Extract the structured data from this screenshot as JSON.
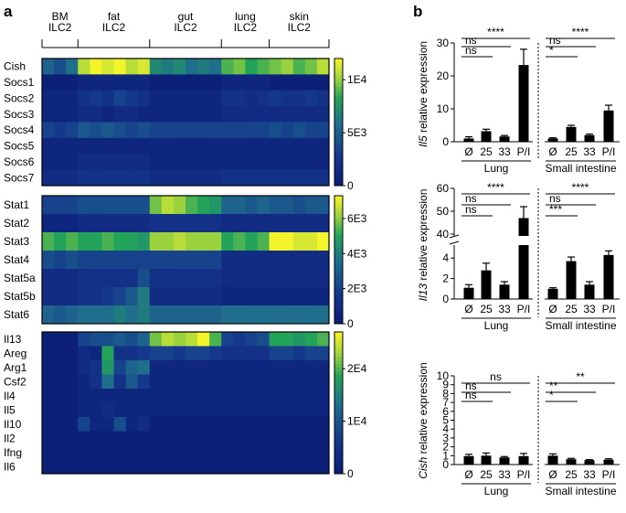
{
  "panel_labels": {
    "a": "a",
    "b": "b"
  },
  "colors": {
    "low": "#0a1a73",
    "mid_low": "#15388c",
    "mid": "#1f6e8c",
    "mid_high": "#23a35a",
    "high_mid": "#9ad13f",
    "high": "#f4f42a",
    "bar": "#000000"
  },
  "chart_data": [
    {
      "type": "heatmap",
      "group_labels": [
        [
          "BM",
          "ILC2"
        ],
        [
          "fat",
          "ILC2"
        ],
        [
          "gut",
          "ILC2"
        ],
        [
          "lung",
          "ILC2"
        ],
        [
          "skin",
          "ILC2"
        ]
      ],
      "group_sizes": [
        3,
        6,
        6,
        4,
        5
      ],
      "heatmaps": [
        {
          "rows": [
            "Cish",
            "Socs1",
            "Socs2",
            "Socs3",
            "Socs4",
            "Socs5",
            "Socs6",
            "Socs7"
          ],
          "colorbar_ticks": [
            "1E4",
            "5E3",
            "0"
          ],
          "colorbar_max": 1.2,
          "colorbar_tick_values": [
            1.0,
            0.5,
            0.0
          ],
          "values": [
            [
              0.45,
              0.35,
              0.5,
              0.9,
              1.0,
              0.95,
              1.0,
              0.9,
              0.95,
              0.6,
              0.55,
              0.6,
              0.5,
              0.55,
              0.5,
              0.75,
              0.8,
              0.7,
              0.75,
              0.8,
              0.85,
              0.75,
              0.8,
              0.9
            ],
            [
              0.05,
              0.05,
              0.05,
              0.1,
              0.1,
              0.1,
              0.1,
              0.1,
              0.1,
              0.05,
              0.05,
              0.05,
              0.05,
              0.05,
              0.05,
              0.1,
              0.1,
              0.1,
              0.1,
              0.05,
              0.05,
              0.05,
              0.05,
              0.05
            ],
            [
              0.1,
              0.1,
              0.1,
              0.2,
              0.25,
              0.2,
              0.3,
              0.25,
              0.2,
              0.1,
              0.1,
              0.1,
              0.1,
              0.1,
              0.1,
              0.2,
              0.2,
              0.15,
              0.2,
              0.25,
              0.2,
              0.2,
              0.25,
              0.2
            ],
            [
              0.1,
              0.1,
              0.1,
              0.15,
              0.15,
              0.1,
              0.15,
              0.15,
              0.1,
              0.1,
              0.1,
              0.1,
              0.1,
              0.1,
              0.1,
              0.15,
              0.15,
              0.15,
              0.15,
              0.15,
              0.15,
              0.15,
              0.15,
              0.15
            ],
            [
              0.3,
              0.25,
              0.3,
              0.4,
              0.35,
              0.4,
              0.35,
              0.3,
              0.35,
              0.3,
              0.3,
              0.3,
              0.3,
              0.3,
              0.3,
              0.3,
              0.3,
              0.3,
              0.3,
              0.35,
              0.3,
              0.35,
              0.3,
              0.3
            ],
            [
              0.1,
              0.1,
              0.1,
              0.1,
              0.1,
              0.1,
              0.1,
              0.1,
              0.1,
              0.1,
              0.1,
              0.1,
              0.1,
              0.1,
              0.1,
              0.1,
              0.1,
              0.1,
              0.1,
              0.1,
              0.1,
              0.1,
              0.1,
              0.1
            ],
            [
              0.1,
              0.1,
              0.1,
              0.15,
              0.15,
              0.15,
              0.15,
              0.15,
              0.15,
              0.1,
              0.1,
              0.1,
              0.1,
              0.1,
              0.1,
              0.1,
              0.1,
              0.1,
              0.1,
              0.1,
              0.1,
              0.1,
              0.1,
              0.1
            ],
            [
              0.15,
              0.15,
              0.15,
              0.2,
              0.2,
              0.2,
              0.2,
              0.2,
              0.2,
              0.15,
              0.15,
              0.15,
              0.15,
              0.15,
              0.15,
              0.2,
              0.2,
              0.2,
              0.2,
              0.2,
              0.2,
              0.2,
              0.2,
              0.2
            ]
          ]
        },
        {
          "rows": [
            "Stat1",
            "Stat2",
            "Stat3",
            "Stat4",
            "Stat5a",
            "Stat5b",
            "Stat6"
          ],
          "colorbar_ticks": [
            "6E3",
            "4E3",
            "2E3",
            "0"
          ],
          "colorbar_max": 7.3,
          "colorbar_tick_values": [
            6.0,
            4.0,
            2.0,
            0.0
          ],
          "values": [
            [
              0.3,
              0.3,
              0.3,
              0.35,
              0.35,
              0.35,
              0.35,
              0.35,
              0.35,
              0.8,
              0.9,
              0.85,
              0.75,
              0.7,
              0.65,
              0.45,
              0.45,
              0.4,
              0.45,
              0.4,
              0.4,
              0.35,
              0.4,
              0.4
            ],
            [
              0.1,
              0.1,
              0.1,
              0.15,
              0.15,
              0.15,
              0.15,
              0.15,
              0.15,
              0.2,
              0.2,
              0.2,
              0.2,
              0.2,
              0.2,
              0.15,
              0.15,
              0.15,
              0.15,
              0.15,
              0.15,
              0.15,
              0.15,
              0.15
            ],
            [
              0.75,
              0.7,
              0.75,
              0.7,
              0.7,
              0.75,
              0.7,
              0.7,
              0.65,
              0.85,
              0.85,
              0.9,
              0.85,
              0.85,
              0.85,
              0.7,
              0.75,
              0.7,
              0.75,
              1.0,
              1.0,
              0.95,
              0.95,
              1.0
            ],
            [
              0.35,
              0.3,
              0.35,
              0.3,
              0.3,
              0.3,
              0.3,
              0.3,
              0.3,
              0.3,
              0.3,
              0.3,
              0.3,
              0.3,
              0.3,
              0.15,
              0.15,
              0.15,
              0.15,
              0.15,
              0.15,
              0.15,
              0.15,
              0.15
            ],
            [
              0.15,
              0.15,
              0.15,
              0.2,
              0.2,
              0.2,
              0.2,
              0.2,
              0.35,
              0.2,
              0.2,
              0.2,
              0.2,
              0.2,
              0.2,
              0.15,
              0.15,
              0.15,
              0.15,
              0.15,
              0.15,
              0.15,
              0.15,
              0.15
            ],
            [
              0.15,
              0.15,
              0.15,
              0.2,
              0.2,
              0.25,
              0.3,
              0.4,
              0.55,
              0.15,
              0.15,
              0.15,
              0.15,
              0.15,
              0.15,
              0.1,
              0.1,
              0.1,
              0.1,
              0.1,
              0.1,
              0.1,
              0.1,
              0.1
            ],
            [
              0.45,
              0.4,
              0.45,
              0.5,
              0.5,
              0.5,
              0.55,
              0.5,
              0.55,
              0.45,
              0.45,
              0.45,
              0.45,
              0.45,
              0.45,
              0.5,
              0.5,
              0.5,
              0.5,
              0.5,
              0.5,
              0.5,
              0.5,
              0.5
            ]
          ]
        },
        {
          "rows": [
            "Il13",
            "Areg",
            "Arg1",
            "Csf2",
            "Il4",
            "Il5",
            "Il10",
            "Il2",
            "Ifng",
            "Il6"
          ],
          "colorbar_ticks": [
            "2E4",
            "1E4",
            "0"
          ],
          "colorbar_max": 2.7,
          "colorbar_tick_values": [
            2.0,
            1.0,
            0.0
          ],
          "values": [
            [
              0.05,
              0.05,
              0.05,
              0.3,
              0.35,
              0.35,
              0.4,
              0.35,
              0.45,
              0.8,
              0.9,
              0.85,
              0.9,
              1.0,
              0.75,
              0.3,
              0.25,
              0.3,
              0.35,
              0.7,
              0.7,
              0.65,
              0.7,
              0.75
            ],
            [
              0.05,
              0.05,
              0.05,
              0.15,
              0.1,
              0.7,
              0.2,
              0.2,
              0.25,
              0.3,
              0.3,
              0.25,
              0.3,
              0.3,
              0.25,
              0.2,
              0.2,
              0.2,
              0.2,
              0.3,
              0.3,
              0.25,
              0.3,
              0.3
            ],
            [
              0.05,
              0.05,
              0.05,
              0.15,
              0.2,
              0.65,
              0.3,
              0.45,
              0.5,
              0.1,
              0.1,
              0.1,
              0.1,
              0.1,
              0.1,
              0.1,
              0.1,
              0.1,
              0.1,
              0.1,
              0.1,
              0.1,
              0.1,
              0.1
            ],
            [
              0.05,
              0.05,
              0.05,
              0.1,
              0.2,
              0.5,
              0.2,
              0.4,
              0.25,
              0.1,
              0.1,
              0.1,
              0.1,
              0.1,
              0.1,
              0.1,
              0.1,
              0.1,
              0.1,
              0.1,
              0.1,
              0.1,
              0.1,
              0.1
            ],
            [
              0.05,
              0.05,
              0.05,
              0.1,
              0.1,
              0.1,
              0.1,
              0.1,
              0.1,
              0.1,
              0.1,
              0.1,
              0.1,
              0.1,
              0.1,
              0.1,
              0.1,
              0.1,
              0.1,
              0.1,
              0.1,
              0.1,
              0.1,
              0.1
            ],
            [
              0.05,
              0.05,
              0.05,
              0.1,
              0.1,
              0.15,
              0.1,
              0.1,
              0.1,
              0.1,
              0.1,
              0.1,
              0.1,
              0.1,
              0.1,
              0.1,
              0.1,
              0.1,
              0.1,
              0.1,
              0.1,
              0.1,
              0.1,
              0.1
            ],
            [
              0.05,
              0.05,
              0.05,
              0.3,
              0.1,
              0.1,
              0.35,
              0.1,
              0.15,
              0.05,
              0.05,
              0.05,
              0.05,
              0.05,
              0.05,
              0.05,
              0.05,
              0.05,
              0.05,
              0.05,
              0.05,
              0.05,
              0.05,
              0.05
            ],
            [
              0.05,
              0.05,
              0.05,
              0.05,
              0.05,
              0.05,
              0.05,
              0.05,
              0.05,
              0.05,
              0.05,
              0.05,
              0.05,
              0.05,
              0.05,
              0.05,
              0.05,
              0.05,
              0.05,
              0.05,
              0.05,
              0.05,
              0.05,
              0.05
            ],
            [
              0.05,
              0.05,
              0.05,
              0.05,
              0.05,
              0.05,
              0.05,
              0.05,
              0.05,
              0.05,
              0.05,
              0.05,
              0.05,
              0.05,
              0.05,
              0.05,
              0.05,
              0.05,
              0.05,
              0.05,
              0.05,
              0.05,
              0.05,
              0.05
            ],
            [
              0.05,
              0.05,
              0.05,
              0.05,
              0.05,
              0.05,
              0.05,
              0.05,
              0.05,
              0.05,
              0.05,
              0.05,
              0.05,
              0.05,
              0.05,
              0.05,
              0.05,
              0.05,
              0.05,
              0.05,
              0.05,
              0.05,
              0.05,
              0.05
            ]
          ]
        }
      ]
    },
    {
      "type": "bar",
      "gene": "Il5",
      "ylabel_suffix": " relative expression",
      "ylim": [
        0,
        30
      ],
      "yticks": [
        0,
        10,
        20,
        30
      ],
      "categories": [
        "Ø",
        "25",
        "33",
        "P/I"
      ],
      "groups": [
        {
          "name": "Lung",
          "values": [
            1.0,
            3.2,
            1.6,
            23.3
          ],
          "errors": [
            0.5,
            0.6,
            0.3,
            4.8
          ]
        },
        {
          "name": "Small intestine",
          "values": [
            1.0,
            4.5,
            2.0,
            9.5
          ],
          "errors": [
            0.2,
            0.5,
            0.3,
            1.6
          ]
        }
      ],
      "significance": [
        {
          "group": 0,
          "from": 0,
          "to": 3,
          "label": "****"
        },
        {
          "group": 0,
          "from": 0,
          "to": 2,
          "label": "ns"
        },
        {
          "group": 0,
          "from": 0,
          "to": 1,
          "label": "ns"
        },
        {
          "group": 1,
          "from": 0,
          "to": 3,
          "label": "****"
        },
        {
          "group": 1,
          "from": 0,
          "to": 2,
          "label": "ns"
        },
        {
          "group": 1,
          "from": 0,
          "to": 1,
          "label": "*"
        }
      ]
    },
    {
      "type": "bar",
      "gene": "Il13",
      "ylabel_suffix": " relative expression",
      "axis_break": true,
      "lower_ylim": [
        0,
        5
      ],
      "lower_yticks": [
        0,
        2,
        4
      ],
      "upper_ylim": [
        40,
        60
      ],
      "upper_yticks": [
        40,
        50,
        60
      ],
      "categories": [
        "Ø",
        "25",
        "33",
        "P/I"
      ],
      "groups": [
        {
          "name": "Lung",
          "values": [
            1.1,
            2.8,
            1.4,
            47.0
          ],
          "errors": [
            0.3,
            0.7,
            0.3,
            5.0
          ]
        },
        {
          "name": "Small intestine",
          "values": [
            1.0,
            3.7,
            1.4,
            4.3
          ],
          "errors": [
            0.1,
            0.4,
            0.3,
            0.4
          ]
        }
      ],
      "significance": [
        {
          "group": 0,
          "from": 0,
          "to": 3,
          "label": "****"
        },
        {
          "group": 0,
          "from": 0,
          "to": 2,
          "label": "ns"
        },
        {
          "group": 0,
          "from": 0,
          "to": 1,
          "label": "ns"
        },
        {
          "group": 1,
          "from": 0,
          "to": 3,
          "label": "****"
        },
        {
          "group": 1,
          "from": 0,
          "to": 2,
          "label": "ns"
        },
        {
          "group": 1,
          "from": 0,
          "to": 1,
          "label": "***"
        }
      ]
    },
    {
      "type": "bar",
      "gene": "Cish",
      "ylabel_suffix": " relative expression",
      "ylim": [
        0,
        10
      ],
      "yticks": [
        0,
        1,
        2,
        3,
        4,
        5,
        6,
        7,
        8,
        9,
        10
      ],
      "categories": [
        "Ø",
        "25",
        "33",
        "P/I"
      ],
      "groups": [
        {
          "name": "Lung",
          "values": [
            0.95,
            1.0,
            0.8,
            0.95
          ],
          "errors": [
            0.2,
            0.3,
            0.1,
            0.3
          ]
        },
        {
          "name": "Small intestine",
          "values": [
            1.0,
            0.6,
            0.5,
            0.55
          ],
          "errors": [
            0.2,
            0.1,
            0.05,
            0.1
          ]
        }
      ],
      "significance": [
        {
          "group": 0,
          "from": 0,
          "to": 3,
          "label": "ns"
        },
        {
          "group": 0,
          "from": 0,
          "to": 2,
          "label": "ns"
        },
        {
          "group": 0,
          "from": 0,
          "to": 1,
          "label": "ns"
        },
        {
          "group": 1,
          "from": 0,
          "to": 3,
          "label": "**"
        },
        {
          "group": 1,
          "from": 0,
          "to": 2,
          "label": "**"
        },
        {
          "group": 1,
          "from": 0,
          "to": 1,
          "label": "*"
        }
      ]
    }
  ]
}
